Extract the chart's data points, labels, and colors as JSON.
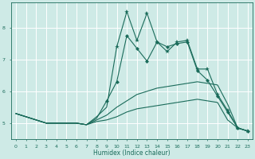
{
  "bg_color": "#ceeae6",
  "grid_color": "#ffffff",
  "line_color": "#1a6b5a",
  "xlabel": "Humidex (Indice chaleur)",
  "xlim": [
    -0.5,
    23.5
  ],
  "ylim": [
    4.5,
    8.8
  ],
  "yticks": [
    5,
    6,
    7,
    8
  ],
  "xticks": [
    0,
    1,
    2,
    3,
    4,
    5,
    6,
    7,
    8,
    9,
    10,
    11,
    12,
    13,
    14,
    15,
    16,
    17,
    18,
    19,
    20,
    21,
    22,
    23
  ],
  "series_jagged": {
    "x": [
      0,
      1,
      2,
      3,
      4,
      5,
      6,
      7,
      8,
      9,
      10,
      11,
      12,
      13,
      14,
      15,
      16,
      17,
      18,
      19,
      20,
      21,
      22,
      23
    ],
    "y": [
      5.3,
      5.2,
      5.1,
      5.0,
      5.0,
      5.0,
      5.0,
      4.95,
      5.2,
      5.5,
      7.4,
      8.5,
      7.6,
      8.45,
      7.55,
      7.25,
      7.55,
      7.6,
      6.7,
      6.7,
      5.9,
      5.4,
      4.85,
      4.75
    ],
    "marker_x": [
      10,
      11,
      12,
      13,
      14,
      15,
      16,
      17,
      18,
      19,
      20,
      21,
      22,
      23
    ],
    "marker_y": [
      7.4,
      8.5,
      7.6,
      8.45,
      7.55,
      7.25,
      7.55,
      7.6,
      6.7,
      6.7,
      5.9,
      5.4,
      4.85,
      4.75
    ]
  },
  "series_smooth": {
    "x": [
      0,
      1,
      2,
      3,
      4,
      5,
      6,
      7,
      8,
      9,
      10,
      11,
      12,
      13,
      14,
      15,
      16,
      17,
      18,
      19,
      20,
      21,
      22,
      23
    ],
    "y": [
      5.3,
      5.2,
      5.1,
      5.0,
      5.0,
      5.0,
      5.0,
      4.95,
      5.15,
      5.7,
      6.3,
      7.75,
      7.35,
      6.95,
      7.55,
      7.4,
      7.5,
      7.55,
      6.65,
      6.35,
      5.85,
      5.35,
      4.85,
      4.75
    ],
    "marker_x": [
      9,
      10,
      11,
      12,
      13,
      14,
      15,
      16,
      17,
      18,
      19,
      20,
      21,
      22,
      23
    ],
    "marker_y": [
      5.7,
      6.3,
      7.75,
      7.35,
      6.95,
      7.55,
      7.4,
      7.5,
      7.55,
      6.65,
      6.35,
      5.85,
      5.35,
      4.85,
      4.75
    ]
  },
  "series_upper": {
    "x": [
      0,
      1,
      2,
      3,
      4,
      5,
      6,
      7,
      8,
      9,
      10,
      11,
      12,
      13,
      14,
      15,
      16,
      17,
      18,
      19,
      20,
      21,
      22,
      23
    ],
    "y": [
      5.3,
      5.2,
      5.1,
      5.0,
      5.0,
      5.0,
      5.0,
      4.95,
      5.1,
      5.25,
      5.5,
      5.7,
      5.9,
      6.0,
      6.1,
      6.15,
      6.2,
      6.25,
      6.3,
      6.25,
      6.2,
      5.6,
      4.85,
      4.75
    ]
  },
  "series_lower": {
    "x": [
      0,
      1,
      2,
      3,
      4,
      5,
      6,
      7,
      8,
      9,
      10,
      11,
      12,
      13,
      14,
      15,
      16,
      17,
      18,
      19,
      20,
      21,
      22,
      23
    ],
    "y": [
      5.3,
      5.2,
      5.1,
      5.0,
      5.0,
      5.0,
      5.0,
      4.95,
      5.05,
      5.1,
      5.2,
      5.35,
      5.45,
      5.5,
      5.55,
      5.6,
      5.65,
      5.7,
      5.75,
      5.7,
      5.65,
      5.1,
      4.85,
      4.75
    ]
  }
}
